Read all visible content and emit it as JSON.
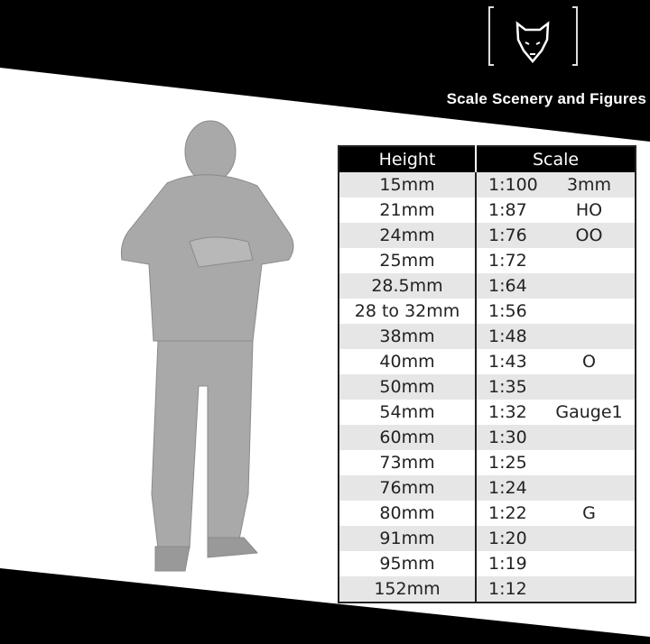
{
  "brand": {
    "title": "Scale Scenery and Figures",
    "logo_icon": "wolf-head-icon"
  },
  "table": {
    "headers": [
      "Height",
      "Scale"
    ],
    "rows": [
      {
        "height": "15mm",
        "ratio": "1:100",
        "name": "3mm"
      },
      {
        "height": "21mm",
        "ratio": "1:87",
        "name": "HO"
      },
      {
        "height": "24mm",
        "ratio": "1:76",
        "name": "OO"
      },
      {
        "height": "25mm",
        "ratio": "1:72",
        "name": ""
      },
      {
        "height": "28.5mm",
        "ratio": "1:64",
        "name": ""
      },
      {
        "height": "28 to 32mm",
        "ratio": "1:56",
        "name": ""
      },
      {
        "height": "38mm",
        "ratio": "1:48",
        "name": ""
      },
      {
        "height": "40mm",
        "ratio": "1:43",
        "name": "O"
      },
      {
        "height": "50mm",
        "ratio": "1:35",
        "name": ""
      },
      {
        "height": "54mm",
        "ratio": "1:32",
        "name": "Gauge1"
      },
      {
        "height": "60mm",
        "ratio": "1:30",
        "name": ""
      },
      {
        "height": "73mm",
        "ratio": "1:25",
        "name": ""
      },
      {
        "height": "76mm",
        "ratio": "1:24",
        "name": ""
      },
      {
        "height": "80mm",
        "ratio": "1:22",
        "name": "G"
      },
      {
        "height": "91mm",
        "ratio": "1:20",
        "name": ""
      },
      {
        "height": "95mm",
        "ratio": "1:19",
        "name": ""
      },
      {
        "height": "152mm",
        "ratio": "1:12",
        "name": ""
      }
    ]
  },
  "colors": {
    "band": "#000000",
    "row_alt": "#e6e6e6",
    "figure": "#a9a9a9"
  }
}
